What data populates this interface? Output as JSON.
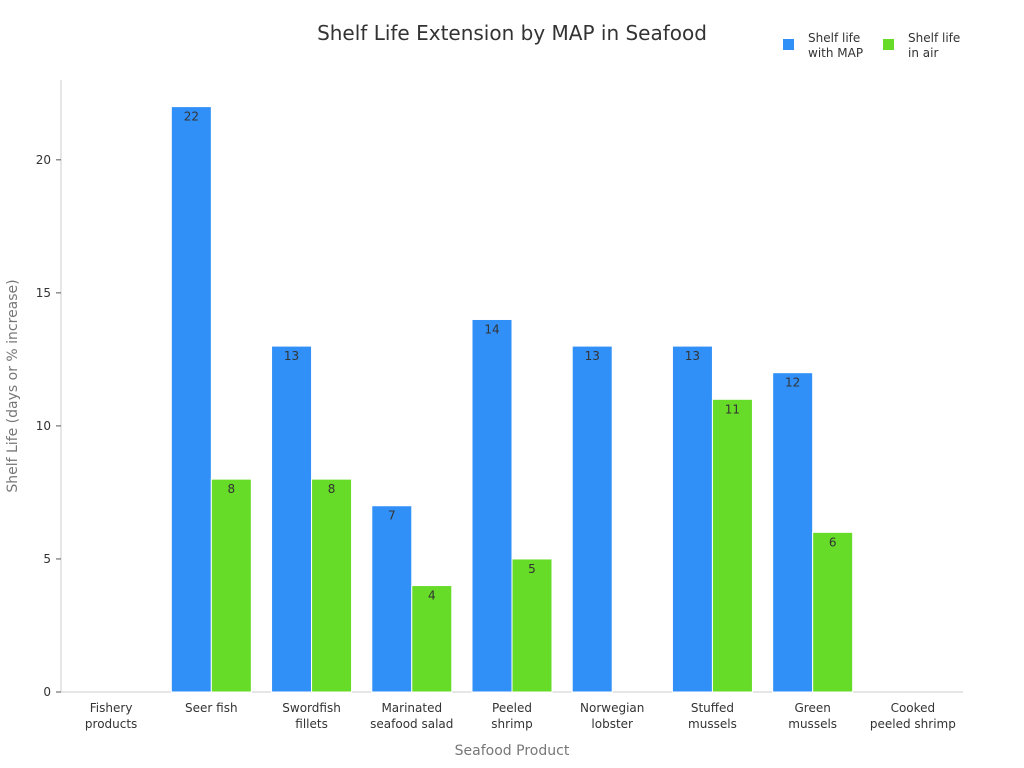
{
  "chart_data": {
    "type": "bar",
    "title": "Shelf Life Extension by MAP in Seafood",
    "xlabel": "Seafood Product",
    "ylabel": "Shelf Life (days or % increase)",
    "ylim": [
      0,
      23
    ],
    "yticks": [
      0,
      5,
      10,
      15,
      20
    ],
    "grid": false,
    "legend_position": "top-right",
    "categories": [
      [
        "Fishery",
        "products"
      ],
      [
        "Seer fish"
      ],
      [
        "Swordfish",
        "fillets"
      ],
      [
        "Marinated",
        "seafood salad"
      ],
      [
        "Peeled",
        "shrimp"
      ],
      [
        "Norwegian",
        "lobster"
      ],
      [
        "Stuffed",
        "mussels"
      ],
      [
        "Green",
        "mussels"
      ],
      [
        "Cooked",
        "peeled shrimp"
      ]
    ],
    "series": [
      {
        "name": "Shelf life with MAP",
        "legend_lines": [
          "Shelf life",
          "with MAP"
        ],
        "color": "#3090f7",
        "values": [
          null,
          22,
          13,
          7,
          14,
          13,
          13,
          12,
          null
        ]
      },
      {
        "name": "Shelf life in air",
        "legend_lines": [
          "Shelf life",
          "in air"
        ],
        "color": "#66db28",
        "values": [
          null,
          8,
          8,
          4,
          5,
          null,
          11,
          6,
          null
        ]
      }
    ]
  }
}
